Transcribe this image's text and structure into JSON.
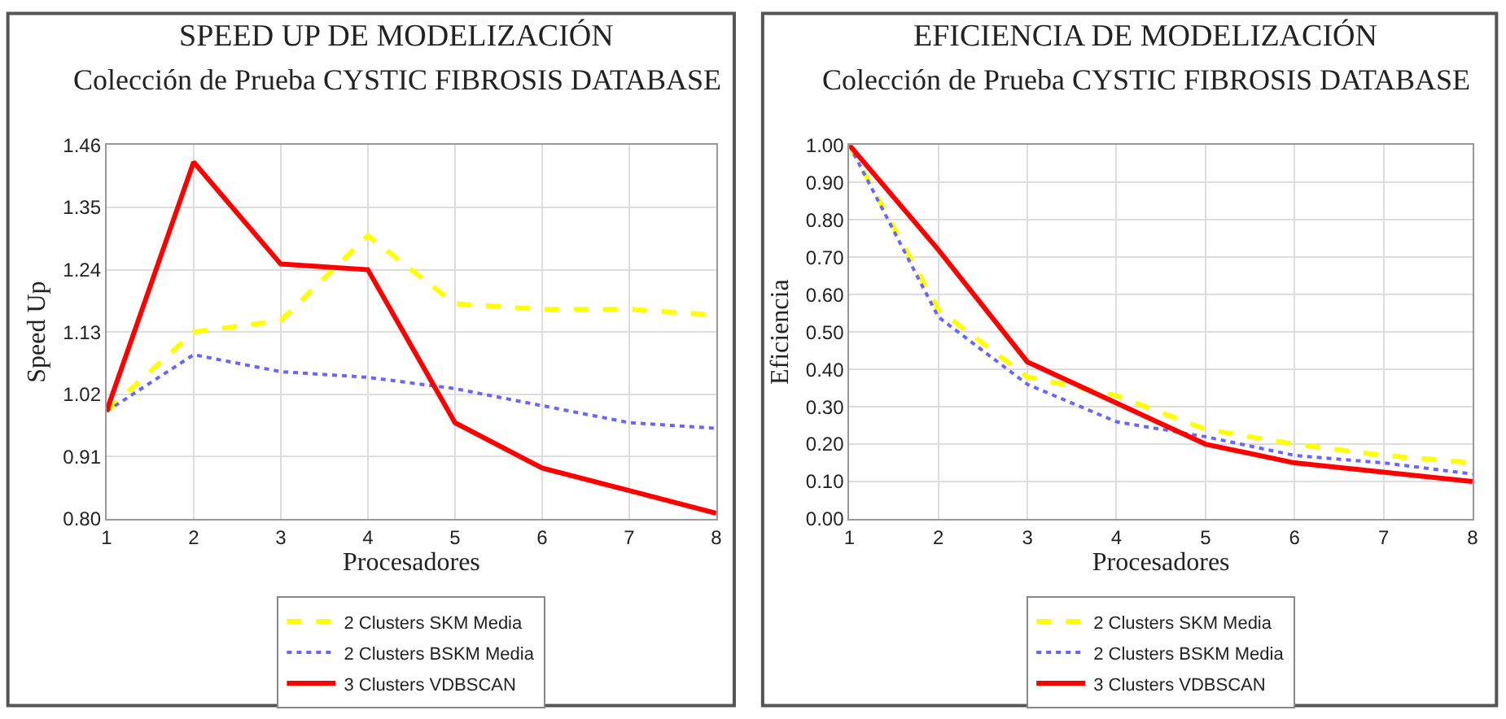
{
  "chart_data": [
    {
      "type": "line",
      "title": "SPEED UP DE MODELIZACIÓN",
      "subtitle": "Colección de Prueba CYSTIC FIBROSIS DATABASE",
      "xlabel": "Procesadores",
      "ylabel": "Speed Up",
      "x": [
        1,
        2,
        3,
        4,
        5,
        6,
        7,
        8
      ],
      "xlim": [
        1,
        8
      ],
      "xticks": [
        1,
        2,
        3,
        4,
        5,
        6,
        7,
        8
      ],
      "ylim": [
        0.8,
        1.46
      ],
      "yticks": [
        {
          "value": 0.8,
          "label": "0.80"
        },
        {
          "value": 0.91,
          "label": "0.91"
        },
        {
          "value": 1.02,
          "label": "1.02"
        },
        {
          "value": 1.13,
          "label": "1.13"
        },
        {
          "value": 1.24,
          "label": "1.24"
        },
        {
          "value": 1.35,
          "label": "1.35"
        },
        {
          "value": 1.46,
          "label": "1.46"
        }
      ],
      "grid": true,
      "legend": "bottom",
      "marker": "none",
      "series": [
        {
          "name": "2 Clusters SKM Media",
          "color": "#ffff00",
          "line_style": "dashed",
          "values": [
            0.99,
            1.13,
            1.15,
            1.3,
            1.18,
            1.17,
            1.17,
            1.16
          ]
        },
        {
          "name": "2 Clusters BSKM Media",
          "color": "#6666ff",
          "line_style": "dotted",
          "values": [
            0.99,
            1.09,
            1.06,
            1.05,
            1.03,
            1.0,
            0.97,
            0.96
          ]
        },
        {
          "name": "3 Clusters VDBSCAN",
          "color": "#ff0000",
          "line_style": "solid",
          "values": [
            0.99,
            1.43,
            1.25,
            1.24,
            0.97,
            0.89,
            0.85,
            0.81
          ]
        }
      ]
    },
    {
      "type": "line",
      "title": "EFICIENCIA DE MODELIZACIÓN",
      "subtitle": "Colección de Prueba CYSTIC FIBROSIS DATABASE",
      "xlabel": "Procesadores",
      "ylabel": "Eficiencia",
      "x": [
        1,
        2,
        3,
        4,
        5,
        6,
        7,
        8
      ],
      "xlim": [
        1,
        8
      ],
      "xticks": [
        1,
        2,
        3,
        4,
        5,
        6,
        7,
        8
      ],
      "ylim": [
        0,
        1
      ],
      "yticks": [
        {
          "value": 0,
          "label": "0.00"
        },
        {
          "value": 0.1,
          "label": "0.10"
        },
        {
          "value": 0.2,
          "label": "0.20"
        },
        {
          "value": 0.3,
          "label": "0.30"
        },
        {
          "value": 0.4,
          "label": "0.40"
        },
        {
          "value": 0.5,
          "label": "0.50"
        },
        {
          "value": 0.6,
          "label": "0.60"
        },
        {
          "value": 0.7,
          "label": "0.70"
        },
        {
          "value": 0.8,
          "label": "0.80"
        },
        {
          "value": 0.9,
          "label": "0.90"
        },
        {
          "value": 1.0,
          "label": "1.00"
        }
      ],
      "grid": true,
      "legend": "bottom",
      "marker": "none",
      "series": [
        {
          "name": "2 Clusters SKM Media",
          "color": "#ffff00",
          "line_style": "dashed",
          "values": [
            1.0,
            0.56,
            0.38,
            0.33,
            0.24,
            0.2,
            0.17,
            0.15
          ]
        },
        {
          "name": "2 Clusters BSKM Media",
          "color": "#6666ff",
          "line_style": "dotted",
          "values": [
            1.0,
            0.54,
            0.36,
            0.26,
            0.22,
            0.17,
            0.15,
            0.12
          ]
        },
        {
          "name": "3 Clusters VDBSCAN",
          "color": "#ff0000",
          "line_style": "solid",
          "values": [
            1.0,
            0.72,
            0.42,
            0.31,
            0.2,
            0.15,
            0.125,
            0.1
          ]
        }
      ]
    }
  ]
}
